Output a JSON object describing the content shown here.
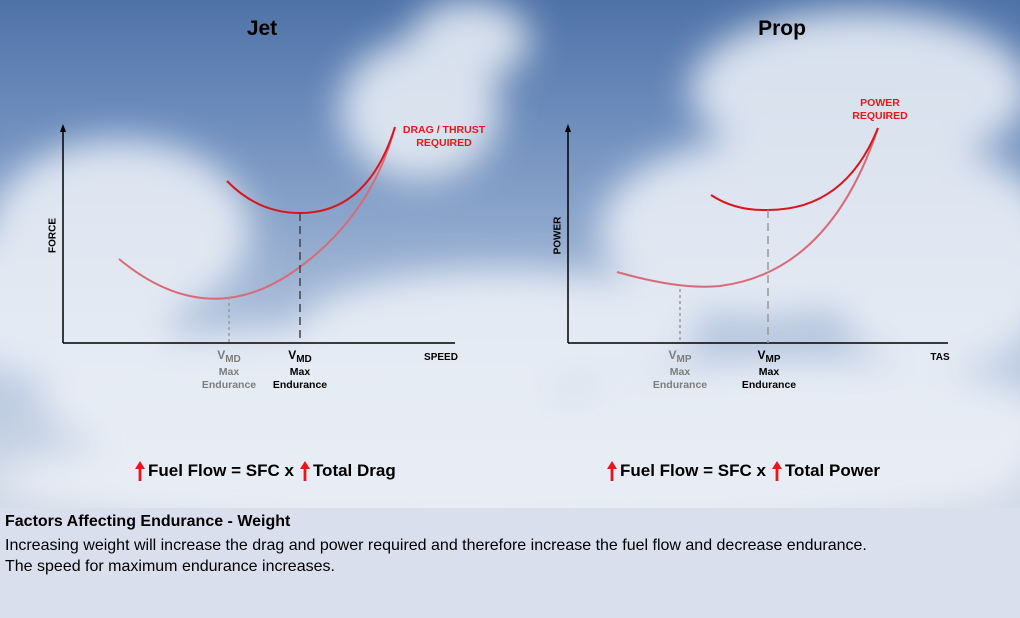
{
  "jet": {
    "title": "Jet",
    "y_axis": "FORCE",
    "x_axis": "SPEED",
    "curve_label_line1": "DRAG / THRUST",
    "curve_label_line2": "REQUIRED",
    "marker_light": {
      "v": "V",
      "sub": "MD",
      "line1": "Max",
      "line2": "Endurance"
    },
    "marker_heavy": {
      "v": "V",
      "sub": "MD",
      "line1": "Max",
      "line2": "Endurance"
    },
    "formula": {
      "left": "Fuel Flow = SFC x",
      "right": "Total Drag"
    }
  },
  "prop": {
    "title": "Prop",
    "y_axis": "POWER",
    "x_axis": "TAS",
    "curve_label_line1": "POWER",
    "curve_label_line2": "REQUIRED",
    "marker_light": {
      "v": "V",
      "sub": "MP",
      "line1": "Max",
      "line2": "Endurance"
    },
    "marker_heavy": {
      "v": "V",
      "sub": "MP",
      "line1": "Max",
      "line2": "Endurance"
    },
    "formula": {
      "left": "Fuel Flow = SFC x",
      "right": "Total Power"
    }
  },
  "panel": {
    "title": "Factors Affecting Endurance - Weight",
    "body_line1": "Increasing weight will increase the drag and power required and therefore increase the fuel flow and decrease endurance.",
    "body_line2": "The speed for maximum endurance increases."
  },
  "colors": {
    "heavy_curve": "#d9161c",
    "light_curve": "#d96b78",
    "arrow_red": "#e8161b",
    "panel_bg": "#dadfee"
  }
}
